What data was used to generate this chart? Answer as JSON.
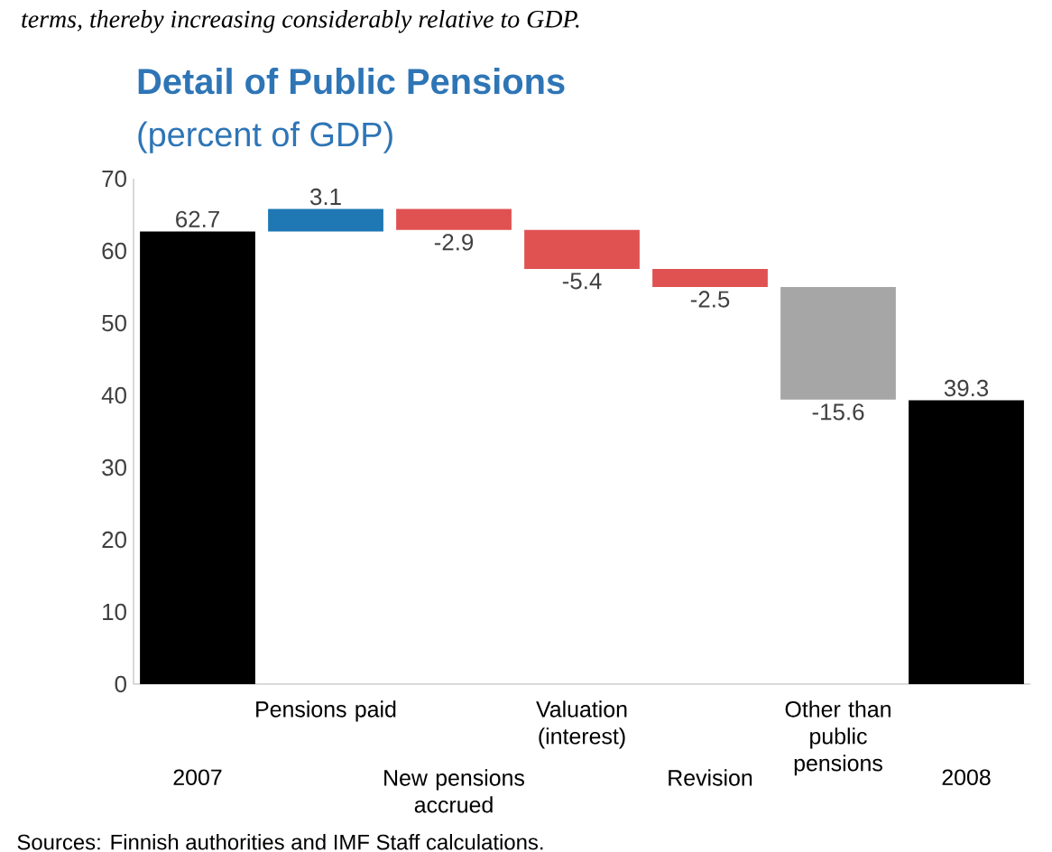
{
  "chart_data": {
    "type": "bar",
    "title": "Detail of Public Pensions",
    "subtitle": "(percent of GDP)",
    "categories": [
      "2007",
      "Pensions paid",
      "New pensions accrued",
      "Valuation (interest)",
      "Revision",
      "Other than public pensions",
      "2008"
    ],
    "values": [
      62.7,
      3.1,
      -2.9,
      -5.4,
      -2.5,
      -15.6,
      39.3
    ],
    "base": [
      0,
      62.7,
      65.8,
      62.9,
      57.5,
      55.0,
      0
    ],
    "colors": [
      "#000000",
      "#1f77b4",
      "#e05252",
      "#e05252",
      "#e05252",
      "#a6a6a6",
      "#000000"
    ],
    "value_labels": [
      "62.7",
      "3.1",
      "-2.9",
      "-5.4",
      "-2.5",
      "-15.6",
      "39.3"
    ],
    "ylim": [
      0,
      70
    ],
    "yticks": [
      0,
      10,
      20,
      30,
      40,
      50,
      60,
      70
    ],
    "annotations": [
      "terms, thereby increasing considerably relative to GDP.",
      "Sources: Finnish authorities and IMF Staff calculations."
    ]
  }
}
